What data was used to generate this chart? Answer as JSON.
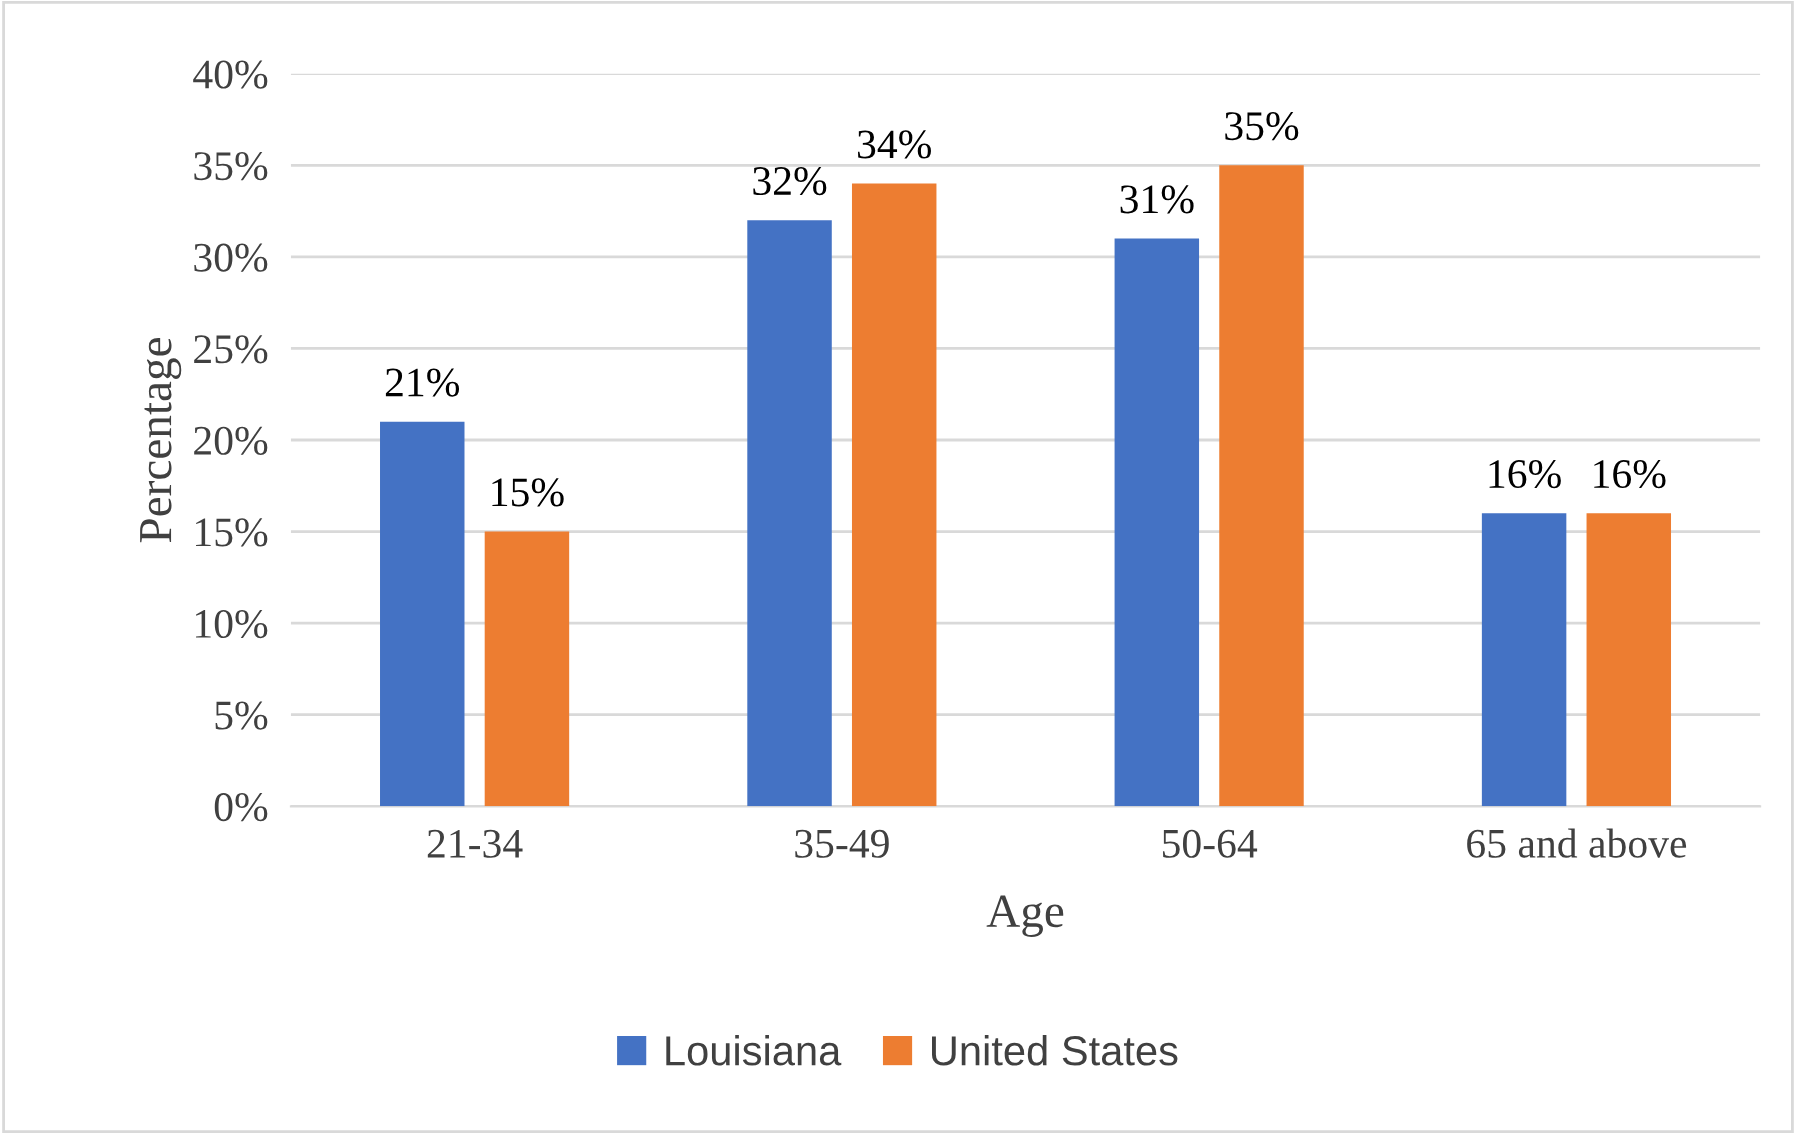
{
  "chart_data": {
    "type": "bar",
    "xlabel": "Age",
    "ylabel": "Percentage",
    "categories": [
      "21-34",
      "35-49",
      "50-64",
      "65 and above"
    ],
    "series": [
      {
        "name": "Louisiana",
        "color": "#4472c4",
        "values": [
          21,
          32,
          31,
          16
        ],
        "value_labels": [
          "21%",
          "32%",
          "31%",
          "16%"
        ]
      },
      {
        "name": "United States",
        "color": "#ed7d31",
        "values": [
          15,
          34,
          35,
          16
        ],
        "value_labels": [
          "15%",
          "34%",
          "35%",
          "16%"
        ]
      }
    ],
    "ylim": [
      0,
      40
    ],
    "yticks": [
      {
        "value": 0,
        "label": "0%"
      },
      {
        "value": 5,
        "label": "5%"
      },
      {
        "value": 10,
        "label": "10%"
      },
      {
        "value": 15,
        "label": "15%"
      },
      {
        "value": 20,
        "label": "20%"
      },
      {
        "value": 25,
        "label": "25%"
      },
      {
        "value": 30,
        "label": "30%"
      },
      {
        "value": 35,
        "label": "35%"
      },
      {
        "value": 40,
        "label": "40%"
      }
    ],
    "grid": "y",
    "legend": "bottom"
  }
}
